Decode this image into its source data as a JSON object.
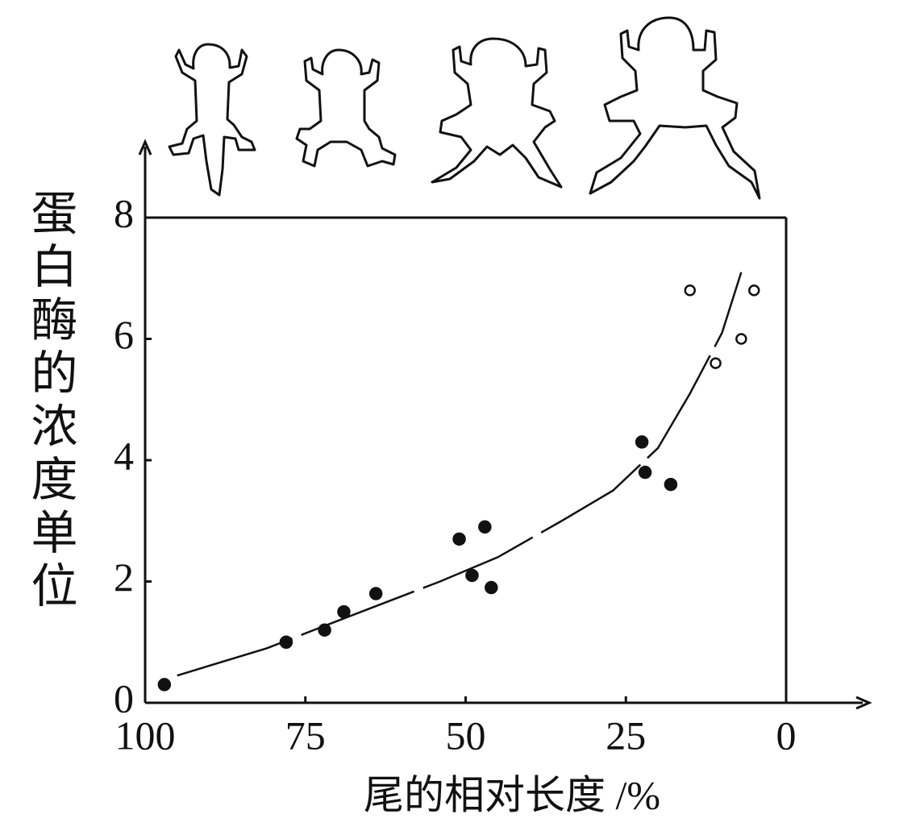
{
  "chart_data": {
    "type": "scatter",
    "xlabel": "尾的相对长度 /%",
    "ylabel": "蛋白酶的浓度单位",
    "xlim": [
      100,
      0
    ],
    "xticks": [
      100,
      75,
      50,
      25,
      0
    ],
    "ylim": [
      0,
      8
    ],
    "yticks": [
      0,
      2,
      4,
      6,
      8
    ],
    "series": [
      {
        "marker": "filled",
        "color": "#111",
        "x": [
          97,
          78,
          72,
          69,
          64,
          51,
          47,
          49,
          46,
          22.5,
          22,
          18
        ],
        "values": [
          0.3,
          1.0,
          1.2,
          1.5,
          1.8,
          2.7,
          2.9,
          2.1,
          1.9,
          4.3,
          3.8,
          3.6
        ]
      },
      {
        "marker": "open",
        "color": "#111",
        "x": [
          15,
          11,
          7,
          5
        ],
        "values": [
          6.8,
          5.6,
          6.0,
          6.8
        ]
      },
      {
        "marker": "line",
        "color": "#111",
        "x": [
          95,
          81,
          70,
          54,
          45,
          35,
          27,
          20,
          15,
          10,
          7
        ],
        "values": [
          0.45,
          0.9,
          1.35,
          2.0,
          2.4,
          3.0,
          3.5,
          4.2,
          5.1,
          6.1,
          7.1
        ]
      }
    ]
  }
}
